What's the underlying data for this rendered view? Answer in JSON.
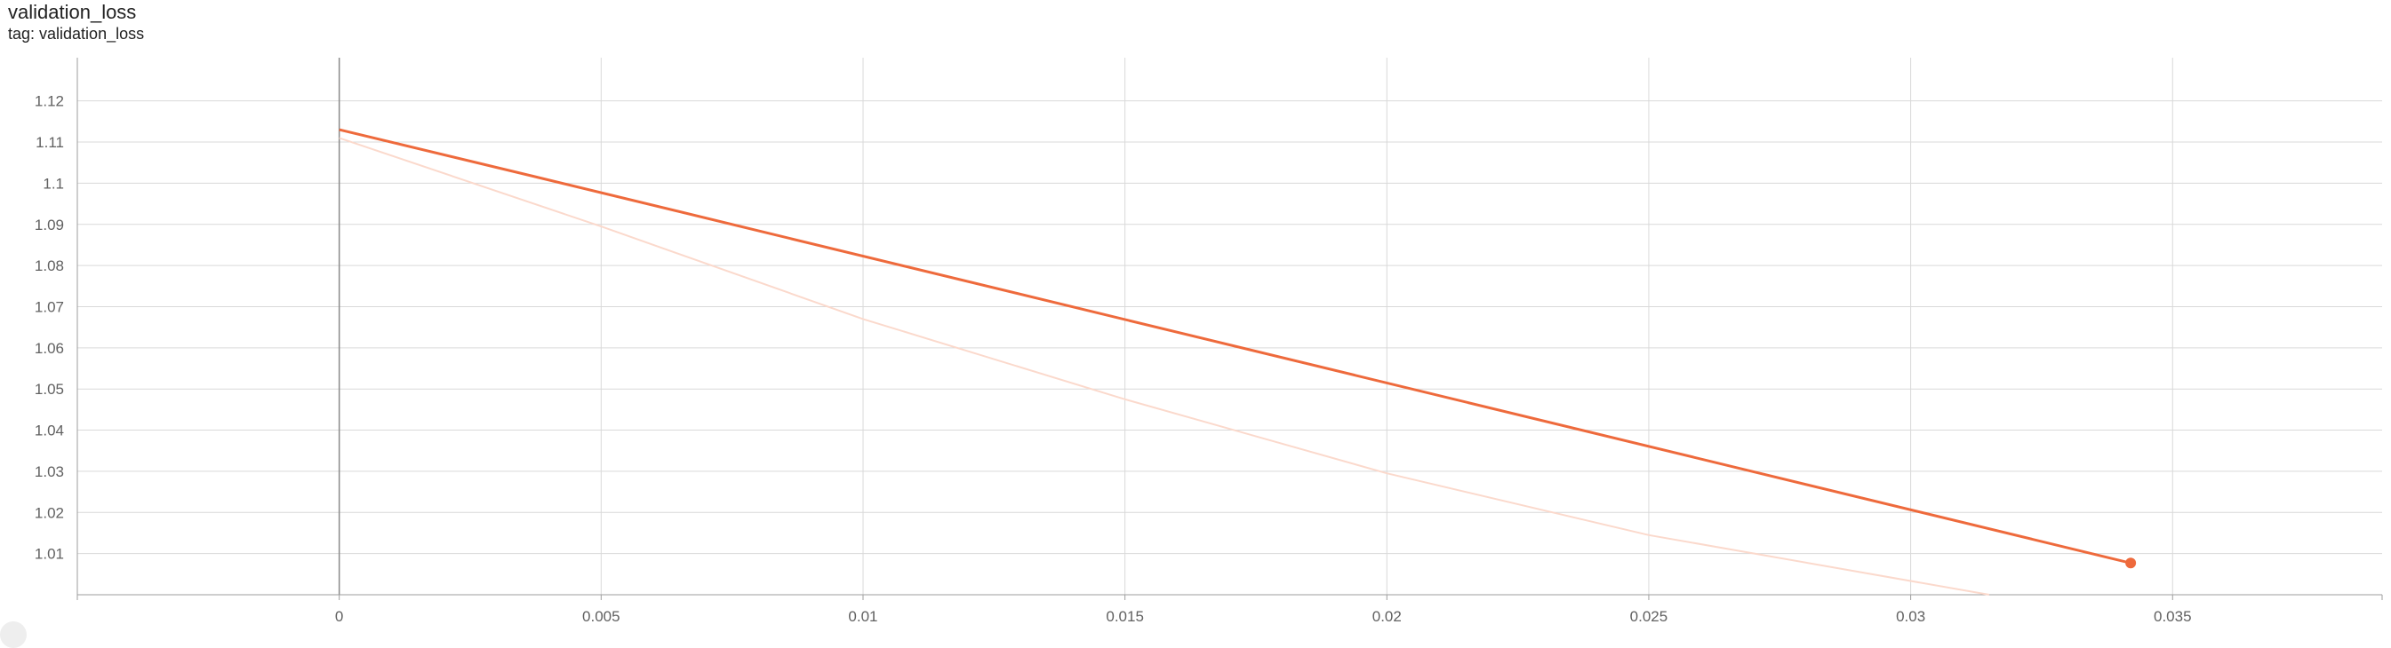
{
  "card": {
    "title": "validation_loss",
    "tag": "tag: validation_loss"
  },
  "colors": {
    "series_line": "#ee6a3c",
    "raw_line": "#fbd9cc",
    "grid": "#d9d9d9",
    "axis": "#9e9e9e",
    "zero_line": "#8a8a8a"
  },
  "chart_data": {
    "type": "line",
    "title": "validation_loss",
    "xlabel": "",
    "ylabel": "",
    "xlim": [
      -0.005,
      0.039
    ],
    "ylim": [
      1.0,
      1.1305
    ],
    "x_ticks": [
      0,
      0.005,
      0.01,
      0.015,
      0.02,
      0.025,
      0.03,
      0.035
    ],
    "x_tick_labels": [
      "0",
      "0.005",
      "0.01",
      "0.015",
      "0.02",
      "0.025",
      "0.03",
      "0.035"
    ],
    "y_ticks": [
      1.01,
      1.02,
      1.03,
      1.04,
      1.05,
      1.06,
      1.07,
      1.08,
      1.09,
      1.1,
      1.11,
      1.12
    ],
    "y_tick_labels": [
      "1.01",
      "1.02",
      "1.03",
      "1.04",
      "1.05",
      "1.06",
      "1.07",
      "1.08",
      "1.09",
      "1.1",
      "1.11",
      "1.12"
    ],
    "grid": true,
    "series": [
      {
        "role": "smoothed",
        "x": [
          0,
          0.0037,
          0.0342
        ],
        "y": [
          1.113,
          1.1017,
          1.0077
        ],
        "end_marker": true
      },
      {
        "role": "raw",
        "x": [
          0,
          0.005,
          0.01,
          0.015,
          0.02,
          0.025,
          0.0315
        ],
        "y": [
          1.111,
          1.0895,
          1.067,
          1.0475,
          1.0295,
          1.0145,
          1.0
        ]
      }
    ]
  }
}
